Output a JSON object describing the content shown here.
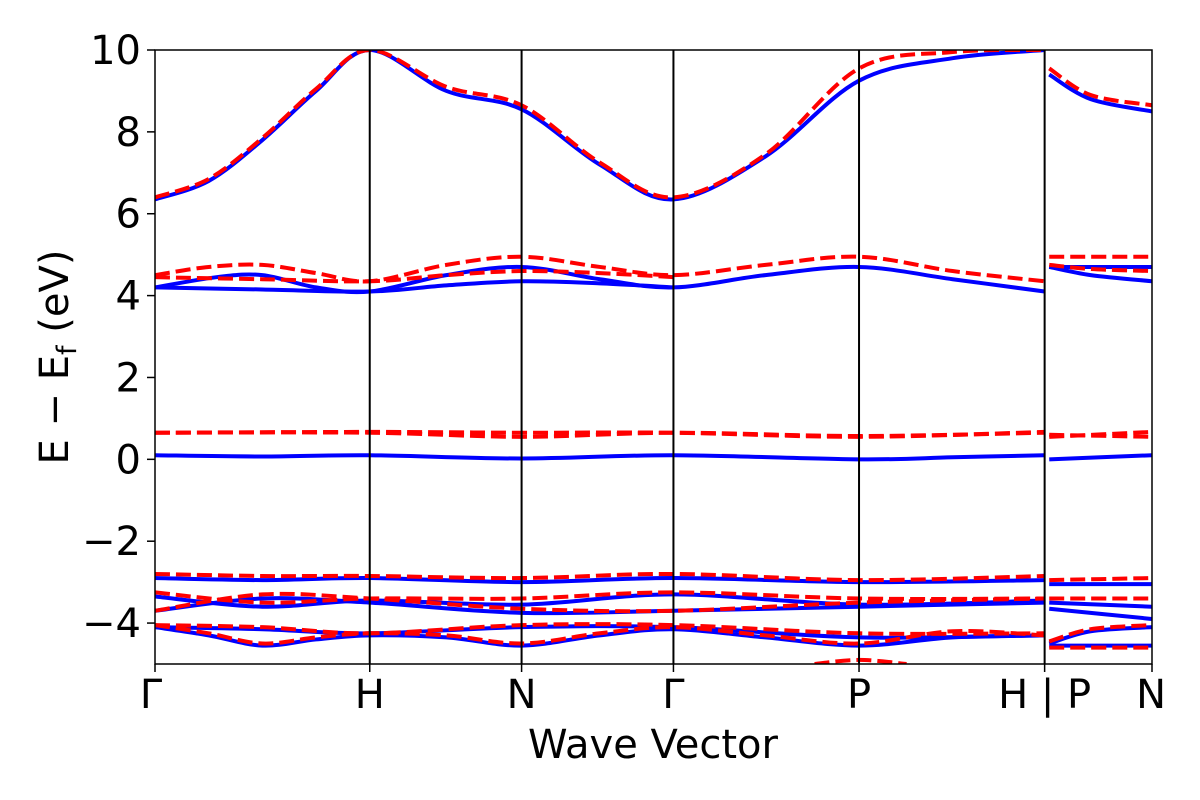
{
  "chart_data": {
    "type": "line",
    "xlabel": "Wave Vector",
    "ylabel": "E − E",
    "ylabel_sub": "f",
    "ylabel_unit": " (eV)",
    "xlim": [
      0,
      6.5
    ],
    "ylim": [
      -5,
      10
    ],
    "y_ticks": [
      -4,
      -2,
      0,
      2,
      4,
      6,
      8,
      10
    ],
    "y_tick_labels": [
      "−4",
      "−2",
      "0",
      "2",
      "4",
      "6",
      "8",
      "10"
    ],
    "k_points": [
      {
        "x": 0.0,
        "label": "Γ"
      },
      {
        "x": 1.4,
        "label": "H"
      },
      {
        "x": 2.39,
        "label": "N"
      },
      {
        "x": 3.38,
        "label": "Γ"
      },
      {
        "x": 4.59,
        "label": "P"
      },
      {
        "x": 5.8,
        "label": "H | P"
      },
      {
        "x": 6.5,
        "label": "N"
      }
    ],
    "colors": {
      "series_a": "#0000ff",
      "series_b": "#ff0000"
    },
    "series": [
      {
        "style": "solid",
        "color": "#0000ff",
        "x": [
          0,
          0.35,
          0.7,
          1.05,
          1.4,
          1.9,
          2.39,
          2.9,
          3.38,
          3.98,
          4.59,
          5.2,
          5.8
        ],
        "y": [
          6.35,
          6.8,
          7.8,
          9.0,
          10.0,
          9.0,
          8.55,
          7.2,
          6.35,
          7.4,
          9.25,
          9.8,
          10.0
        ]
      },
      {
        "style": "solid",
        "color": "#0000ff",
        "x": [
          5.83,
          6.1,
          6.5
        ],
        "y": [
          9.4,
          8.8,
          8.5
        ]
      },
      {
        "style": "solid",
        "color": "#0000ff",
        "x": [
          0,
          0.4,
          0.7,
          1.05,
          1.4,
          1.9,
          2.39,
          2.9,
          3.38,
          3.98,
          4.59,
          5.2,
          5.8
        ],
        "y": [
          4.2,
          4.45,
          4.5,
          4.2,
          4.1,
          4.5,
          4.7,
          4.4,
          4.2,
          4.5,
          4.7,
          4.4,
          4.1
        ]
      },
      {
        "style": "solid",
        "color": "#0000ff",
        "x": [
          0,
          0.7,
          1.4,
          1.9,
          2.39,
          2.9,
          3.38
        ],
        "y": [
          4.2,
          4.15,
          4.1,
          4.25,
          4.35,
          4.3,
          4.2
        ]
      },
      {
        "style": "solid",
        "color": "#0000ff",
        "x": [
          5.83,
          6.1,
          6.5
        ],
        "y": [
          4.7,
          4.7,
          4.7
        ]
      },
      {
        "style": "solid",
        "color": "#0000ff",
        "x": [
          5.83,
          6.1,
          6.5
        ],
        "y": [
          4.7,
          4.5,
          4.35
        ]
      },
      {
        "style": "solid",
        "color": "#0000ff",
        "x": [
          0,
          0.7,
          1.4,
          2.39,
          3.38,
          4.59,
          5.2,
          5.8
        ],
        "y": [
          0.1,
          0.07,
          0.1,
          0.02,
          0.1,
          0.0,
          0.05,
          0.1
        ]
      },
      {
        "style": "solid",
        "color": "#0000ff",
        "x": [
          5.83,
          6.5
        ],
        "y": [
          0.0,
          0.1
        ]
      },
      {
        "style": "solid",
        "color": "#0000ff",
        "x": [
          0,
          0.7,
          1.4,
          2.39,
          3.38,
          4.59,
          5.8
        ],
        "y": [
          -2.9,
          -2.95,
          -2.9,
          -3.0,
          -2.9,
          -3.0,
          -2.95
        ]
      },
      {
        "style": "solid",
        "color": "#0000ff",
        "x": [
          5.83,
          6.5
        ],
        "y": [
          -3.05,
          -3.05
        ]
      },
      {
        "style": "solid",
        "color": "#0000ff",
        "x": [
          0,
          0.7,
          1.4,
          2.39,
          3.38,
          4.59,
          5.8
        ],
        "y": [
          -3.35,
          -3.6,
          -3.45,
          -3.55,
          -3.3,
          -3.55,
          -3.45
        ]
      },
      {
        "style": "solid",
        "color": "#0000ff",
        "x": [
          0,
          0.7,
          1.4,
          2.39,
          3.38,
          4.59,
          5.8
        ],
        "y": [
          -3.7,
          -3.4,
          -3.5,
          -3.75,
          -3.7,
          -3.6,
          -3.5
        ]
      },
      {
        "style": "solid",
        "color": "#0000ff",
        "x": [
          5.83,
          6.5
        ],
        "y": [
          -3.5,
          -3.6
        ]
      },
      {
        "style": "solid",
        "color": "#0000ff",
        "x": [
          5.83,
          6.5
        ],
        "y": [
          -3.65,
          -3.9
        ]
      },
      {
        "style": "solid",
        "color": "#0000ff",
        "x": [
          0,
          0.7,
          1.4,
          2.39,
          3.38,
          4.59,
          5.8
        ],
        "y": [
          -4.1,
          -4.15,
          -4.25,
          -4.1,
          -4.1,
          -4.35,
          -4.3
        ]
      },
      {
        "style": "solid",
        "color": "#0000ff",
        "x": [
          0,
          0.35,
          0.7,
          1.05,
          1.4,
          1.9,
          2.39,
          2.9,
          3.38,
          3.98,
          4.59,
          5.2,
          5.8
        ],
        "y": [
          -4.1,
          -4.3,
          -4.55,
          -4.4,
          -4.3,
          -4.35,
          -4.55,
          -4.3,
          -4.15,
          -4.35,
          -4.55,
          -4.35,
          -4.3
        ]
      },
      {
        "style": "solid",
        "color": "#0000ff",
        "x": [
          5.83,
          6.1,
          6.5
        ],
        "y": [
          -4.5,
          -4.2,
          -4.1
        ]
      },
      {
        "style": "solid",
        "color": "#0000ff",
        "x": [
          5.83,
          6.5
        ],
        "y": [
          -4.55,
          -4.55
        ]
      },
      {
        "style": "dashed",
        "color": "#ff0000",
        "x": [
          0,
          0.35,
          0.7,
          1.05,
          1.4,
          1.9,
          2.39,
          2.9,
          3.38,
          3.98,
          4.59,
          5.2,
          5.8
        ],
        "y": [
          6.4,
          6.85,
          7.85,
          9.05,
          10.0,
          9.1,
          8.65,
          7.25,
          6.4,
          7.45,
          9.55,
          9.95,
          10.0
        ]
      },
      {
        "style": "dashed",
        "color": "#ff0000",
        "x": [
          5.83,
          6.1,
          6.5
        ],
        "y": [
          9.55,
          8.9,
          8.65
        ]
      },
      {
        "style": "dashed",
        "color": "#ff0000",
        "x": [
          0,
          0.35,
          0.7,
          1.05,
          1.4,
          1.9,
          2.39,
          2.9,
          3.38,
          3.98,
          4.59,
          5.2,
          5.8
        ],
        "y": [
          4.5,
          4.7,
          4.75,
          4.55,
          4.35,
          4.75,
          4.95,
          4.7,
          4.5,
          4.75,
          4.95,
          4.6,
          4.35
        ]
      },
      {
        "style": "dashed",
        "color": "#ff0000",
        "x": [
          0,
          0.7,
          1.4,
          1.9,
          2.39,
          2.9,
          3.38
        ],
        "y": [
          4.45,
          4.4,
          4.35,
          4.5,
          4.6,
          4.55,
          4.45
        ]
      },
      {
        "style": "dashed",
        "color": "#ff0000",
        "x": [
          5.83,
          6.5
        ],
        "y": [
          4.95,
          4.95
        ]
      },
      {
        "style": "dashed",
        "color": "#ff0000",
        "x": [
          5.83,
          6.1,
          6.5
        ],
        "y": [
          4.75,
          4.65,
          4.6
        ]
      },
      {
        "style": "dashed",
        "color": "#ff0000",
        "x": [
          0,
          1.4,
          2.39,
          3.38,
          4.59,
          5.8
        ],
        "y": [
          0.65,
          0.67,
          0.65,
          0.65,
          0.55,
          0.67
        ]
      },
      {
        "style": "dashed",
        "color": "#ff0000",
        "x": [
          0,
          1.4,
          2.39,
          3.38,
          4.59,
          5.8
        ],
        "y": [
          0.65,
          0.65,
          0.55,
          0.65,
          0.57,
          0.65
        ]
      },
      {
        "style": "dashed",
        "color": "#ff0000",
        "x": [
          5.83,
          6.5
        ],
        "y": [
          0.55,
          0.67
        ]
      },
      {
        "style": "dashed",
        "color": "#ff0000",
        "x": [
          5.83,
          6.5
        ],
        "y": [
          0.6,
          0.55
        ]
      },
      {
        "style": "dashed",
        "color": "#ff0000",
        "x": [
          0,
          0.7,
          1.4,
          2.39,
          3.38,
          4.59,
          5.8
        ],
        "y": [
          -2.8,
          -2.85,
          -2.85,
          -2.9,
          -2.8,
          -2.95,
          -2.85
        ]
      },
      {
        "style": "dashed",
        "color": "#ff0000",
        "x": [
          5.83,
          6.5
        ],
        "y": [
          -2.95,
          -2.9
        ]
      },
      {
        "style": "dashed",
        "color": "#ff0000",
        "x": [
          0,
          0.7,
          1.4,
          2.39,
          3.38,
          4.59,
          5.8
        ],
        "y": [
          -3.25,
          -3.5,
          -3.4,
          -3.4,
          -3.25,
          -3.4,
          -3.4
        ]
      },
      {
        "style": "dashed",
        "color": "#ff0000",
        "x": [
          0,
          0.7,
          1.4,
          2.39,
          3.38,
          4.59,
          5.8
        ],
        "y": [
          -3.7,
          -3.3,
          -3.4,
          -3.65,
          -3.7,
          -3.5,
          -3.4
        ]
      },
      {
        "style": "dashed",
        "color": "#ff0000",
        "x": [
          5.83,
          6.5
        ],
        "y": [
          -3.4,
          -3.4
        ]
      },
      {
        "style": "dashed",
        "color": "#ff0000",
        "x": [
          0,
          0.7,
          1.4,
          2.39,
          3.38,
          4.59,
          5.8
        ],
        "y": [
          -4.05,
          -4.1,
          -4.25,
          -4.05,
          -4.05,
          -4.25,
          -4.25
        ]
      },
      {
        "style": "dashed",
        "color": "#ff0000",
        "x": [
          0,
          0.35,
          0.7,
          1.05,
          1.4,
          1.9,
          2.39,
          2.9,
          3.38,
          3.98,
          4.59,
          5.2,
          5.8
        ],
        "y": [
          -4.05,
          -4.25,
          -4.5,
          -4.35,
          -4.25,
          -4.3,
          -4.5,
          -4.25,
          -4.1,
          -4.3,
          -4.5,
          -4.2,
          -4.3
        ]
      },
      {
        "style": "dashed",
        "color": "#ff0000",
        "x": [
          5.83,
          6.1,
          6.5
        ],
        "y": [
          -4.45,
          -4.15,
          -4.05
        ]
      },
      {
        "style": "dashed",
        "color": "#ff0000",
        "x": [
          5.83,
          6.5
        ],
        "y": [
          -4.6,
          -4.6
        ]
      },
      {
        "style": "dashed",
        "color": "#ff0000",
        "x": [
          4.3,
          4.59,
          4.9
        ],
        "y": [
          -5.0,
          -4.9,
          -5.0
        ]
      }
    ]
  }
}
